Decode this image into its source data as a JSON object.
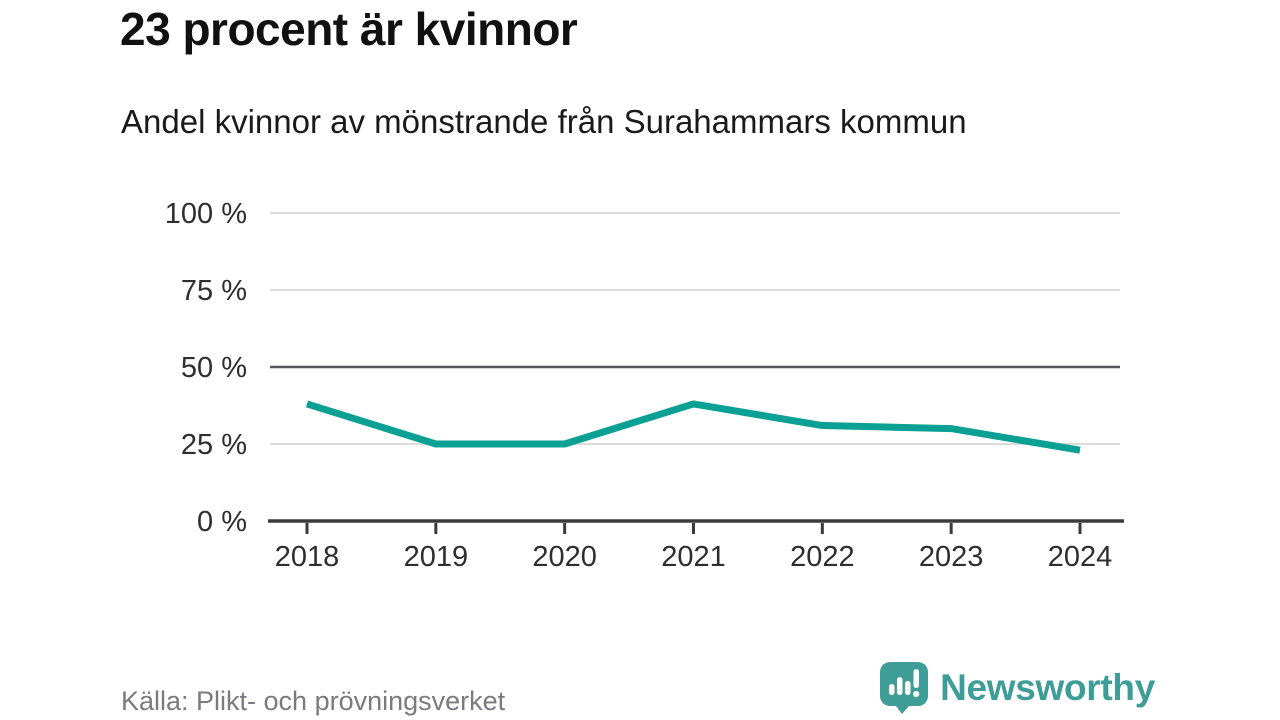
{
  "colors": {
    "line": "#0ba094",
    "grid": "#dcdcdc",
    "reference": "#56565c",
    "axis": "#3b3b3b",
    "brand": "#3f9d97"
  },
  "chart_data": {
    "type": "line",
    "title": "23 procent är kvinnor",
    "subtitle": "Andel kvinnor av mönstrande från Surahammars kommun",
    "categories": [
      "2018",
      "2019",
      "2020",
      "2021",
      "2022",
      "2023",
      "2024"
    ],
    "values": [
      38,
      25,
      25,
      38,
      31,
      30,
      23
    ],
    "series_name": "Andel kvinnor av mönstrande",
    "unit": "%",
    "xlabel": "",
    "ylabel": "",
    "ylim": [
      0,
      100
    ],
    "yticks": [
      0,
      25,
      50,
      75,
      100
    ],
    "grid": true,
    "reference_line": 50,
    "legend": "none"
  },
  "footer": {
    "source_label": "Källa: Plikt- och prövningsverket"
  },
  "logo": {
    "brand": "Newsworthy",
    "icon": "speech-bubble-bar-chart-exclamation"
  }
}
